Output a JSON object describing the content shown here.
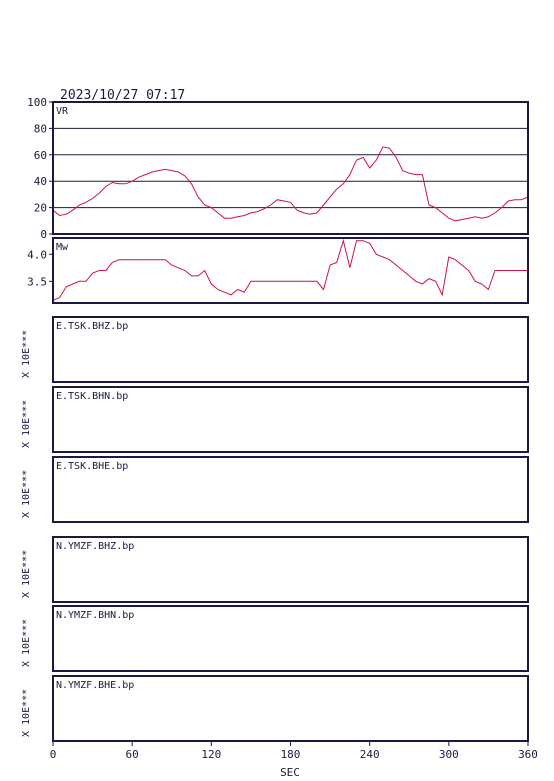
{
  "header": {
    "timestamp": "2023/10/27 07:17"
  },
  "x_axis": {
    "label": "SEC",
    "ticks": [
      0,
      60,
      120,
      180,
      240,
      300,
      360
    ]
  },
  "vr_panel": {
    "label": "VR",
    "ticks": [
      0,
      20,
      40,
      60,
      80,
      100
    ]
  },
  "mw_panel": {
    "label": "Mw",
    "ticks": [
      "3.5",
      "4.0"
    ]
  },
  "scale_label": "X 10E***",
  "traces": [
    {
      "name": "E.TSK.BHZ.bp"
    },
    {
      "name": "E.TSK.BHN.bp"
    },
    {
      "name": "E.TSK.BHE.bp"
    },
    {
      "name": "N.YMZF.BHZ.bp"
    },
    {
      "name": "N.YMZF.BHN.bp"
    },
    {
      "name": "N.YMZF.BHE.bp"
    }
  ],
  "colors": {
    "frame": "#1a1a40",
    "trace": "#cc1444"
  },
  "chart_data": [
    {
      "type": "line",
      "title": "",
      "xlabel": "SEC",
      "ylabel": "VR",
      "xlim": [
        0,
        360
      ],
      "ylim": [
        0,
        100
      ],
      "grid": true,
      "x": [
        0,
        5,
        10,
        15,
        20,
        25,
        30,
        35,
        40,
        45,
        50,
        55,
        60,
        65,
        70,
        75,
        80,
        85,
        90,
        95,
        100,
        105,
        110,
        115,
        120,
        125,
        130,
        135,
        140,
        145,
        150,
        155,
        160,
        165,
        170,
        175,
        180,
        185,
        190,
        195,
        200,
        205,
        210,
        215,
        220,
        225,
        230,
        235,
        240,
        245,
        250,
        255,
        260,
        265,
        270,
        275,
        280,
        285,
        290,
        295,
        300,
        305,
        310,
        315,
        320,
        325,
        330,
        335,
        340,
        345,
        350,
        355,
        360
      ],
      "series": [
        {
          "values": [
            18,
            14,
            15,
            18,
            22,
            24,
            27,
            31,
            36,
            39,
            38,
            38,
            40,
            43,
            45,
            47,
            48,
            49,
            48,
            47,
            44,
            38,
            28,
            22,
            20,
            16,
            12,
            12,
            13,
            14,
            16,
            17,
            19,
            22,
            26,
            25,
            24,
            18,
            16,
            15,
            16,
            22,
            28,
            34,
            38,
            45,
            56,
            58,
            50,
            56,
            66,
            65,
            58,
            48,
            46,
            45,
            45,
            22,
            20,
            16,
            12,
            10,
            11,
            12,
            13,
            12,
            13,
            16,
            20,
            25,
            26,
            26,
            28
          ]
        }
      ]
    },
    {
      "type": "line",
      "title": "",
      "xlabel": "SEC",
      "ylabel": "Mw",
      "xlim": [
        0,
        360
      ],
      "ylim": [
        3.1,
        4.3
      ],
      "grid": false,
      "x": [
        0,
        5,
        10,
        15,
        20,
        25,
        30,
        35,
        40,
        45,
        50,
        55,
        60,
        65,
        70,
        75,
        80,
        85,
        90,
        95,
        100,
        105,
        110,
        115,
        120,
        125,
        130,
        135,
        140,
        145,
        150,
        155,
        160,
        165,
        170,
        175,
        180,
        185,
        190,
        195,
        200,
        205,
        210,
        215,
        220,
        225,
        230,
        235,
        240,
        245,
        250,
        255,
        260,
        265,
        270,
        275,
        280,
        285,
        290,
        295,
        300,
        305,
        310,
        315,
        320,
        325,
        330,
        335,
        340,
        345,
        350,
        355,
        360
      ],
      "series": [
        {
          "values": [
            3.15,
            3.2,
            3.4,
            3.45,
            3.5,
            3.5,
            3.65,
            3.7,
            3.7,
            3.85,
            3.9,
            3.9,
            3.9,
            3.9,
            3.9,
            3.9,
            3.9,
            3.9,
            3.8,
            3.75,
            3.7,
            3.6,
            3.6,
            3.7,
            3.45,
            3.35,
            3.3,
            3.25,
            3.35,
            3.3,
            3.5,
            3.5,
            3.5,
            3.5,
            3.5,
            3.5,
            3.5,
            3.5,
            3.5,
            3.5,
            3.5,
            3.35,
            3.8,
            3.85,
            4.25,
            3.75,
            4.25,
            4.25,
            4.2,
            4.0,
            3.95,
            3.9,
            3.8,
            3.7,
            3.6,
            3.5,
            3.45,
            3.55,
            3.5,
            3.25,
            3.95,
            3.9,
            3.8,
            3.7,
            3.5,
            3.45,
            3.35,
            3.7,
            3.7,
            3.7,
            3.7,
            3.7,
            3.7
          ]
        }
      ]
    }
  ]
}
